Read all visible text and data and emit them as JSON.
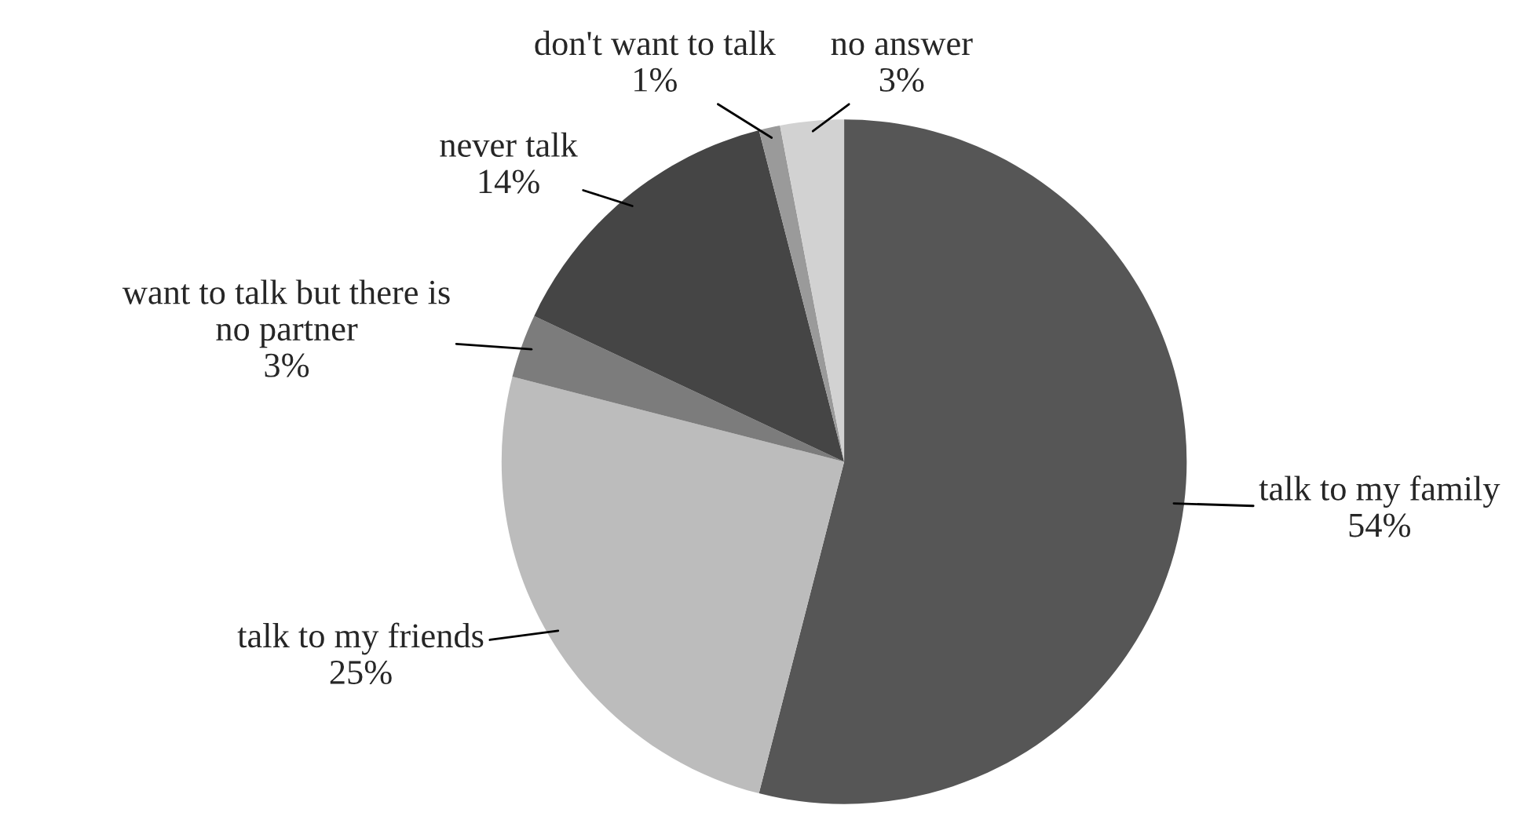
{
  "chart_data": {
    "type": "pie",
    "categories": [
      "talk to my family",
      "talk to my friends",
      "want to talk but there is no partner",
      "never talk",
      "don't want to talk",
      "no answer"
    ],
    "values": [
      54,
      25,
      3,
      14,
      1,
      3
    ],
    "value_labels": [
      "54%",
      "25%",
      "3%",
      "14%",
      "1%",
      "3%"
    ],
    "colors": [
      "#565656",
      "#bcbcbc",
      "#7c7c7c",
      "#454545",
      "#9a9a9a",
      "#d2d2d2"
    ],
    "legend": false
  }
}
